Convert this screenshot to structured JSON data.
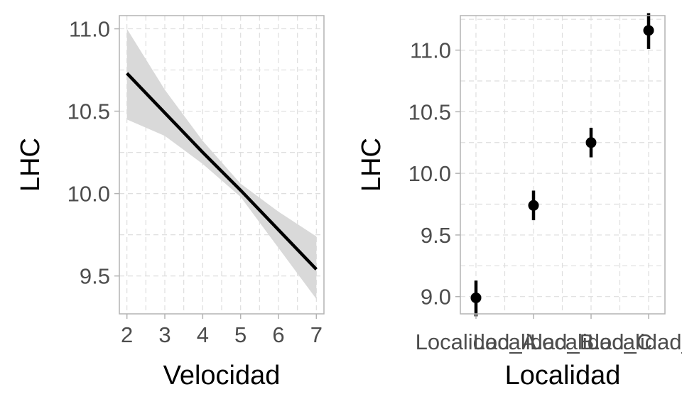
{
  "chart_data": [
    {
      "type": "line",
      "xlabel": "Velocidad",
      "ylabel": "LHC",
      "xlim": [
        1.8,
        7.2
      ],
      "ylim": [
        9.27,
        11.08
      ],
      "x_ticks": [
        "2",
        "3",
        "4",
        "5",
        "6",
        "7"
      ],
      "y_ticks": [
        "9.5",
        "10.0",
        "10.5",
        "11.0"
      ],
      "grid": true,
      "series": [
        {
          "x": [
            2,
            3,
            4,
            5,
            6,
            7
          ],
          "y": [
            10.73,
            10.49,
            10.25,
            10.02,
            9.78,
            9.54
          ],
          "ci_lower": [
            10.45,
            10.35,
            10.18,
            9.98,
            9.67,
            9.36
          ],
          "ci_upper": [
            11.0,
            10.63,
            10.32,
            10.06,
            9.89,
            9.74
          ]
        }
      ],
      "colors": {
        "line": "#000000",
        "ribbon": "#d9d9d9"
      }
    },
    {
      "type": "scatter",
      "xlabel": "Localidad",
      "ylabel": "LHC",
      "ylim": [
        8.86,
        11.28
      ],
      "categories": [
        "Localidad_A",
        "Localidad_B",
        "Localidad_C",
        "Localidad_D"
      ],
      "x_tick_labels": [
        "Localidad_A",
        "Localidad_B",
        "Localidad_C",
        "Localidad_D"
      ],
      "y_ticks": [
        "9.0",
        "9.5",
        "10.0",
        "10.5",
        "11.0"
      ],
      "grid": true,
      "series": [
        {
          "values": [
            8.99,
            9.74,
            10.25,
            11.16
          ],
          "lower": [
            8.84,
            9.62,
            10.13,
            11.01
          ],
          "upper": [
            9.13,
            9.86,
            10.37,
            11.3
          ]
        }
      ],
      "colors": {
        "point": "#000000",
        "errorbar": "#000000"
      }
    }
  ]
}
